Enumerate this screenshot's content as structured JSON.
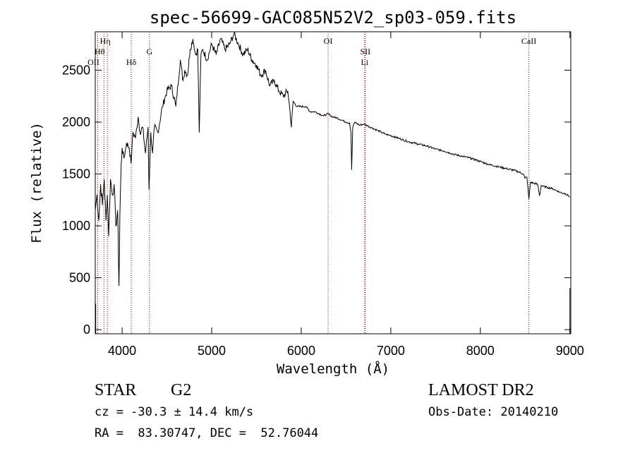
{
  "chart_data": {
    "type": "line",
    "title": "spec-56699-GAC085N52V2_sp03-059.fits",
    "xlabel": "Wavelength (Å)",
    "ylabel": "Flux (relative)",
    "xlim": [
      3700,
      9010
    ],
    "ylim": [
      -40,
      2870
    ],
    "xticks": [
      4000,
      5000,
      6000,
      7000,
      8000,
      9000
    ],
    "yticks": [
      0,
      500,
      1000,
      1500,
      2000,
      2500
    ],
    "grid": false,
    "line_color": "#000000",
    "marker_color": "#aa0000",
    "series": [
      {
        "x": [
          3700,
          3720,
          3740,
          3760,
          3780,
          3800,
          3820,
          3835,
          3850,
          3870,
          3890,
          3910,
          3930,
          3950,
          3965,
          3975,
          3990,
          4000,
          4020,
          4050,
          4080,
          4100,
          4120,
          4150,
          4180,
          4200,
          4230,
          4260,
          4290,
          4300,
          4320,
          4340,
          4360,
          4400,
          4450,
          4500,
          4550,
          4600,
          4650,
          4680,
          4700,
          4730,
          4760,
          4790,
          4800,
          4820,
          4845,
          4861,
          4880,
          4900,
          4950,
          5000,
          5050,
          5100,
          5150,
          5200,
          5250,
          5300,
          5350,
          5400,
          5450,
          5500,
          5550,
          5600,
          5650,
          5700,
          5750,
          5800,
          5850,
          5875,
          5890,
          5896,
          5910,
          5950,
          6000,
          6050,
          6100,
          6150,
          6200,
          6250,
          6300,
          6350,
          6400,
          6450,
          6500,
          6540,
          6555,
          6563,
          6575,
          6600,
          6650,
          6700,
          6750,
          6800,
          6850,
          6900,
          6950,
          7000,
          7100,
          7200,
          7300,
          7400,
          7500,
          7600,
          7700,
          7800,
          7900,
          8000,
          8100,
          8200,
          8300,
          8400,
          8480,
          8498,
          8520,
          8542,
          8560,
          8600,
          8640,
          8662,
          8680,
          8700,
          8750,
          8800,
          8850,
          8900,
          8950,
          9000
        ],
        "y": [
          1150,
          1300,
          1050,
          1400,
          1200,
          1450,
          1050,
          1300,
          900,
          1450,
          1300,
          1400,
          1000,
          1150,
          420,
          1100,
          1600,
          1750,
          1650,
          1800,
          1750,
          1600,
          1900,
          1850,
          2050,
          1900,
          1950,
          1700,
          1950,
          1350,
          1900,
          1700,
          1950,
          1900,
          2150,
          2300,
          2350,
          2150,
          2600,
          2400,
          2500,
          2450,
          2700,
          2800,
          2750,
          2650,
          2700,
          1900,
          2650,
          2700,
          2600,
          2750,
          2650,
          2800,
          2700,
          2750,
          2850,
          2750,
          2650,
          2700,
          2600,
          2550,
          2450,
          2500,
          2350,
          2400,
          2300,
          2250,
          2300,
          2100,
          1950,
          2050,
          2200,
          2150,
          2150,
          2150,
          2100,
          2100,
          2080,
          2060,
          2080,
          2050,
          2040,
          2020,
          2000,
          1990,
          1900,
          1540,
          1950,
          2000,
          1970,
          1980,
          1960,
          1940,
          1920,
          1900,
          1880,
          1870,
          1840,
          1810,
          1790,
          1770,
          1740,
          1720,
          1690,
          1670,
          1650,
          1620,
          1590,
          1570,
          1550,
          1530,
          1500,
          1460,
          1470,
          1260,
          1420,
          1410,
          1400,
          1290,
          1390,
          1380,
          1370,
          1360,
          1340,
          1320,
          1310,
          1280
        ]
      }
    ],
    "line_markers": [
      {
        "label": "Hη",
        "x": 3835
      },
      {
        "label": "Hθ",
        "x": 3797
      },
      {
        "label": "OII",
        "x": 3727
      },
      {
        "label": "Hδ",
        "x": 4102
      },
      {
        "label": "G",
        "x": 4305
      },
      {
        "label": "OI",
        "x": 6300
      },
      {
        "label": "SII",
        "x": 6716
      },
      {
        "label": "Li",
        "x": 6708
      },
      {
        "label": "CaII",
        "x": 8542
      }
    ]
  },
  "info": {
    "obj_class": "STAR",
    "subclass": "G2",
    "survey": "LAMOST DR2",
    "cz": "cz = -30.3 ± 14.4 km/s",
    "obs_date": "Obs-Date: 20140210",
    "coords": "RA =  83.30747, DEC =  52.76044"
  }
}
